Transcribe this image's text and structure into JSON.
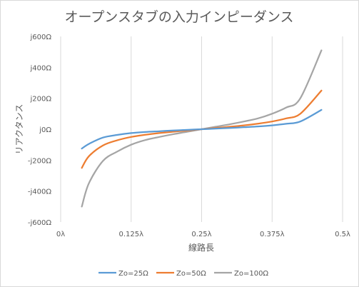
{
  "chart_data": {
    "type": "line",
    "title": "オープンスタブの入力インピーダンス",
    "xlabel": "線路長",
    "ylabel": "リアクタンス",
    "xlim": [
      0,
      0.5
    ],
    "ylim": [
      -600,
      600
    ],
    "x_ticks": [
      0,
      0.125,
      0.25,
      0.375,
      0.5
    ],
    "x_tick_labels": [
      "0λ",
      "0.125λ",
      "0.25λ",
      "0.375λ",
      "0.5λ"
    ],
    "y_ticks": [
      600,
      400,
      200,
      0,
      -200,
      -400,
      -600
    ],
    "y_tick_labels": [
      "j600Ω",
      "j400Ω",
      "j200Ω",
      "j0Ω",
      "-j200Ω",
      "-j400Ω",
      "-j600Ω"
    ],
    "grid": "vertical",
    "legend": "bottom",
    "x": [
      0.0375,
      0.05,
      0.075,
      0.1,
      0.125,
      0.15,
      0.175,
      0.2,
      0.225,
      0.25,
      0.275,
      0.3,
      0.325,
      0.35,
      0.375,
      0.4,
      0.425,
      0.4625
    ],
    "series": [
      {
        "name": "Zo=25Ω",
        "color": "#5b9bd5",
        "values": [
          -125,
          -95,
          -54,
          -37,
          -25,
          -18,
          -13,
          -8,
          -4,
          0,
          4,
          8,
          13,
          18,
          25,
          35,
          50,
          125
        ]
      },
      {
        "name": "Zo=50Ω",
        "color": "#ed7d31",
        "values": [
          -250,
          -175,
          -105,
          -72,
          -50,
          -36,
          -25,
          -16,
          -8,
          0,
          8,
          16,
          25,
          36,
          50,
          70,
          100,
          250
        ]
      },
      {
        "name": "Zo=100Ω",
        "color": "#a5a5a5",
        "values": [
          -500,
          -350,
          -205,
          -145,
          -100,
          -70,
          -50,
          -32,
          -16,
          0,
          16,
          32,
          50,
          70,
          100,
          140,
          200,
          510
        ]
      }
    ]
  }
}
